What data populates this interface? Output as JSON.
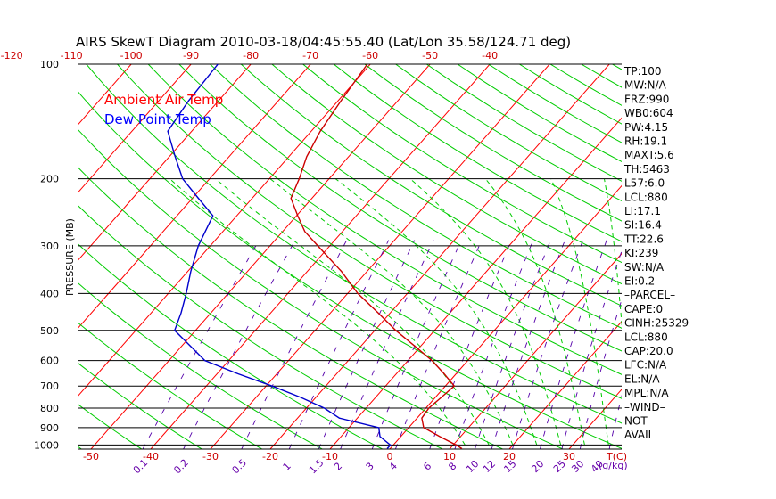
{
  "chart_data": {
    "type": "line",
    "title": "AIRS SkewT Diagram 2010-03-18/04:45:55.40 (Lat/Lon 35.58/124.71 deg)",
    "ylabel": "PRESSURE (MB)",
    "pressure_ticks": [
      100,
      200,
      300,
      400,
      500,
      600,
      700,
      800,
      900,
      1000
    ],
    "top_temperature_ticks": [
      -120,
      -110,
      -100,
      -90,
      -80,
      -70,
      -60,
      -50,
      -40
    ],
    "bottom_temperature_ticks": [
      -50,
      -40,
      -30,
      -20,
      -10,
      0,
      10,
      20,
      30
    ],
    "bottom_temperature_unit": "T(C)",
    "mixing_ratio_ticks": [
      "0.1",
      "0.2",
      "0.5",
      "1",
      "1.5",
      "2",
      "3",
      "4",
      "6",
      "8",
      "10",
      "12",
      "15",
      "20",
      "25",
      "30",
      "40"
    ],
    "mixing_ratio_unit": "(g/kg)",
    "legend": [
      {
        "label": "Ambient Air Temp",
        "color": "#ff0000"
      },
      {
        "label": "Dew Point Temp",
        "color": "#0000ff"
      }
    ],
    "series": [
      {
        "name": "Ambient Air Temp",
        "color": "#cc0000",
        "points": [
          {
            "p": 100,
            "t": -60.5
          },
          {
            "p": 125,
            "t": -59.5
          },
          {
            "p": 150,
            "t": -58.5
          },
          {
            "p": 175,
            "t": -57.0
          },
          {
            "p": 200,
            "t": -55.0
          },
          {
            "p": 225,
            "t": -53.5
          },
          {
            "p": 250,
            "t": -49.8
          },
          {
            "p": 275,
            "t": -46.3
          },
          {
            "p": 300,
            "t": -42.0
          },
          {
            "p": 350,
            "t": -34.3
          },
          {
            "p": 400,
            "t": -28.3
          },
          {
            "p": 450,
            "t": -22.0
          },
          {
            "p": 500,
            "t": -16.5
          },
          {
            "p": 550,
            "t": -11.0
          },
          {
            "p": 600,
            "t": -6.0
          },
          {
            "p": 650,
            "t": -2.0
          },
          {
            "p": 700,
            "t": 1.5
          },
          {
            "p": 750,
            "t": 1.0
          },
          {
            "p": 800,
            "t": 0.5
          },
          {
            "p": 850,
            "t": 0.8
          },
          {
            "p": 900,
            "t": 2.5
          },
          {
            "p": 950,
            "t": 6.5
          },
          {
            "p": 1000,
            "t": 10.5
          },
          {
            "p": 1022,
            "t": 12.0
          }
        ]
      },
      {
        "name": "Dew Point Temp",
        "color": "#0000cc",
        "points": [
          {
            "p": 100,
            "t": -85.5
          },
          {
            "p": 125,
            "t": -85.0
          },
          {
            "p": 150,
            "t": -84.0
          },
          {
            "p": 175,
            "t": -79.0
          },
          {
            "p": 200,
            "t": -74.5
          },
          {
            "p": 225,
            "t": -69.0
          },
          {
            "p": 250,
            "t": -64.0
          },
          {
            "p": 300,
            "t": -62.0
          },
          {
            "p": 350,
            "t": -59.5
          },
          {
            "p": 400,
            "t": -57.0
          },
          {
            "p": 450,
            "t": -55.0
          },
          {
            "p": 500,
            "t": -53.5
          },
          {
            "p": 600,
            "t": -44.0
          },
          {
            "p": 650,
            "t": -36.5
          },
          {
            "p": 700,
            "t": -29.0
          },
          {
            "p": 750,
            "t": -22.5
          },
          {
            "p": 800,
            "t": -17.0
          },
          {
            "p": 850,
            "t": -13.0
          },
          {
            "p": 900,
            "t": -5.0
          },
          {
            "p": 950,
            "t": -3.5
          },
          {
            "p": 1000,
            "t": -0.5
          },
          {
            "p": 1022,
            "t": -0.5
          }
        ]
      }
    ],
    "indices": [
      "TP:100",
      "MW:N/A",
      "FRZ:990",
      "WB0:604",
      "PW:4.15",
      "RH:19.1",
      "MAXT:5.6",
      "TH:5463",
      "L57:6.0",
      "LCL:880",
      "LI:17.1",
      "SI:16.4",
      "TT:22.6",
      "KI:239",
      "SW:N/A",
      "EI:0.2",
      "–PARCEL–",
      "CAPE:0",
      "CINH:25329",
      "LCL:880",
      "CAP:20.0",
      "LFC:N/A",
      "EL:N/A",
      "MPL:N/A",
      "–WIND–",
      "NOT",
      "AVAIL"
    ],
    "colors": {
      "isotherm": "#ff0000",
      "dry_adiabat": "#00cc00",
      "moist_adiabat": "#00cc00",
      "mixing_ratio": "#5500aa",
      "isobar": "#000000",
      "top_tick_labels": "#cc0000",
      "bottom_tick_labels": "#cc0000",
      "mixing_tick_labels": "#6600aa"
    }
  }
}
